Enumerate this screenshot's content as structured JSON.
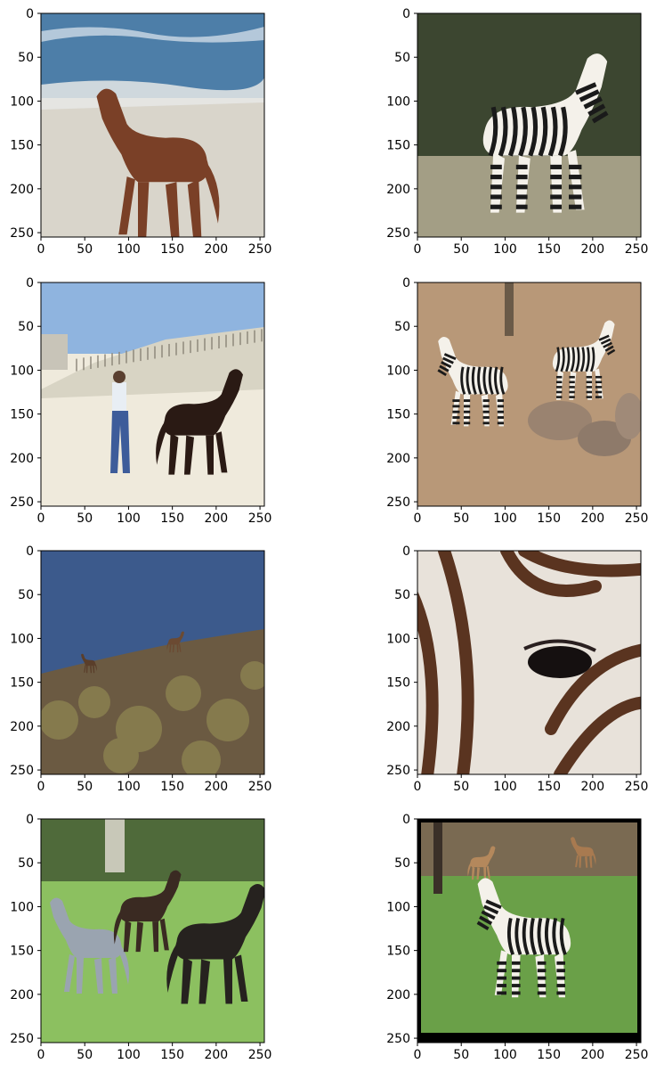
{
  "chart_data": [
    {
      "type": "image",
      "image_ref": "horse-on-beach-photo",
      "image_colors": {
        "sky": "#4d7ea8",
        "sand": "#d9d5cb",
        "horse": "#7a4027"
      },
      "xlim": [
        0,
        255
      ],
      "ylim": [
        255,
        0
      ],
      "xticks": [
        0,
        50,
        100,
        150,
        200,
        250
      ],
      "yticks": [
        0,
        50,
        100,
        150,
        200,
        250
      ]
    },
    {
      "type": "image",
      "image_ref": "zebra-standing-in-grass-photo",
      "image_colors": {
        "bg": "#3c4630",
        "ground": "#a39e85",
        "stripe": "#1a1a1a"
      },
      "xlim": [
        0,
        255
      ],
      "ylim": [
        255,
        0
      ],
      "xticks": [
        0,
        50,
        100,
        150,
        200,
        250
      ],
      "yticks": [
        0,
        50,
        100,
        150,
        200,
        250
      ]
    },
    {
      "type": "image",
      "image_ref": "man-photographing-horse-on-beach-photo",
      "image_colors": {
        "sky": "#8fb4df",
        "sand": "#efeadc",
        "horse": "#2a1a14"
      },
      "xlim": [
        0,
        255
      ],
      "ylim": [
        255,
        0
      ],
      "xticks": [
        0,
        50,
        100,
        150,
        200,
        250
      ],
      "yticks": [
        0,
        50,
        100,
        150,
        200,
        250
      ]
    },
    {
      "type": "image",
      "image_ref": "zebras-by-rocks-photo",
      "image_colors": {
        "ground": "#b89878",
        "rock": "#9a8370",
        "stripe": "#2a2a2a"
      },
      "xlim": [
        0,
        255
      ],
      "ylim": [
        255,
        0
      ],
      "xticks": [
        0,
        50,
        100,
        150,
        200,
        250
      ],
      "yticks": [
        0,
        50,
        100,
        150,
        200,
        250
      ]
    },
    {
      "type": "image",
      "image_ref": "horses-on-hillside-photo",
      "image_colors": {
        "sky": "#3c5a8c",
        "hill": "#6b5a42",
        "brush": "#8a8050"
      },
      "xlim": [
        0,
        255
      ],
      "ylim": [
        255,
        0
      ],
      "xticks": [
        0,
        50,
        100,
        150,
        200,
        250
      ],
      "yticks": [
        0,
        50,
        100,
        150,
        200,
        250
      ]
    },
    {
      "type": "image",
      "image_ref": "zebra-eye-closeup-photo",
      "image_colors": {
        "light": "#e8e2da",
        "stripe": "#5a3420",
        "eye": "#151010"
      },
      "xlim": [
        0,
        255
      ],
      "ylim": [
        255,
        0
      ],
      "xticks": [
        0,
        50,
        100,
        150,
        200,
        250
      ],
      "yticks": [
        0,
        50,
        100,
        150,
        200,
        250
      ]
    },
    {
      "type": "image",
      "image_ref": "horses-grazing-photo",
      "image_colors": {
        "trees": "#4f6a3a",
        "grass": "#8cc060",
        "horse": "#26221f",
        "grey-horse": "#9aa4b0"
      },
      "xlim": [
        0,
        255
      ],
      "ylim": [
        255,
        0
      ],
      "xticks": [
        0,
        50,
        100,
        150,
        200,
        250
      ],
      "yticks": [
        0,
        50,
        100,
        150,
        200,
        250
      ]
    },
    {
      "type": "image",
      "image_ref": "zebra-in-framed-meadow-photo",
      "image_colors": {
        "frame": "#000000",
        "grass": "#6aa048",
        "stripe": "#1c1c1c"
      },
      "xlim": [
        0,
        255
      ],
      "ylim": [
        255,
        0
      ],
      "xticks": [
        0,
        50,
        100,
        150,
        200,
        250
      ],
      "yticks": [
        0,
        50,
        100,
        150,
        200,
        250
      ]
    }
  ]
}
